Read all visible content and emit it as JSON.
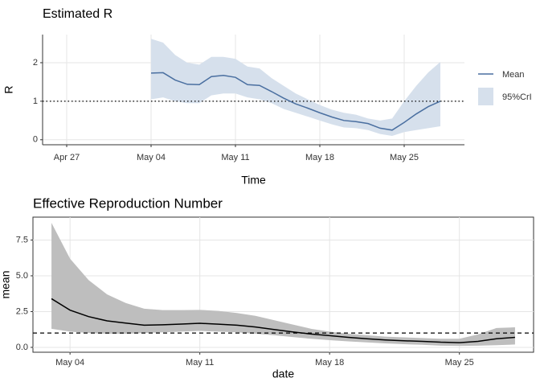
{
  "chart_data": [
    {
      "type": "line",
      "title": "Estimated R",
      "x_label": "Time",
      "y_label": "R",
      "x": [
        "May 04",
        "May 05",
        "May 06",
        "May 07",
        "May 08",
        "May 09",
        "May 10",
        "May 11",
        "May 12",
        "May 13",
        "May 14",
        "May 15",
        "May 16",
        "May 17",
        "May 18",
        "May 19",
        "May 20",
        "May 21",
        "May 22",
        "May 23",
        "May 24",
        "May 25",
        "May 26",
        "May 27",
        "May 28"
      ],
      "series": [
        {
          "name": "Mean",
          "color": "#4a6fa0",
          "values": [
            1.73,
            1.74,
            1.55,
            1.44,
            1.43,
            1.64,
            1.67,
            1.62,
            1.43,
            1.41,
            1.25,
            1.08,
            0.93,
            0.82,
            0.7,
            0.59,
            0.5,
            0.47,
            0.42,
            0.3,
            0.25,
            0.45,
            0.67,
            0.86,
            1.0
          ]
        }
      ],
      "band": {
        "name": "95%CrI",
        "color": "#d6e0ec",
        "upper": [
          2.62,
          2.52,
          2.2,
          2.0,
          1.95,
          2.15,
          2.15,
          2.1,
          1.9,
          1.85,
          1.6,
          1.4,
          1.2,
          1.05,
          0.9,
          0.78,
          0.7,
          0.65,
          0.55,
          0.5,
          0.55,
          1.0,
          1.4,
          1.75,
          2.02
        ],
        "lower": [
          1.05,
          1.1,
          1.0,
          0.95,
          0.95,
          1.15,
          1.2,
          1.2,
          1.1,
          1.05,
          0.95,
          0.8,
          0.7,
          0.6,
          0.5,
          0.4,
          0.32,
          0.3,
          0.25,
          0.15,
          0.1,
          0.2,
          0.25,
          0.3,
          0.35
        ]
      },
      "hline": 1,
      "hline_style": "dotted",
      "xlim": [
        "Apr 25",
        "May 30"
      ],
      "xticks": [
        "Apr 27",
        "May 04",
        "May 11",
        "May 18",
        "May 25"
      ],
      "ylim": [
        -0.13,
        2.73
      ],
      "yticks": [
        0,
        1,
        2
      ],
      "grid": true,
      "legend": "right"
    },
    {
      "type": "line",
      "title": "Effective Reproduction Number",
      "x_label": "date",
      "y_label": "mean",
      "x": [
        "May 03",
        "May 04",
        "May 05",
        "May 06",
        "May 07",
        "May 08",
        "May 09",
        "May 10",
        "May 11",
        "May 12",
        "May 13",
        "May 14",
        "May 15",
        "May 16",
        "May 17",
        "May 18",
        "May 19",
        "May 20",
        "May 21",
        "May 22",
        "May 23",
        "May 24",
        "May 25",
        "May 26",
        "May 27",
        "May 28"
      ],
      "values": [
        3.4,
        2.6,
        2.15,
        1.85,
        1.7,
        1.55,
        1.58,
        1.63,
        1.68,
        1.62,
        1.55,
        1.42,
        1.25,
        1.08,
        0.93,
        0.82,
        0.7,
        0.6,
        0.52,
        0.46,
        0.42,
        0.36,
        0.33,
        0.42,
        0.6,
        0.7
      ],
      "color": "#000000",
      "band": {
        "color": "#bebebe",
        "upper": [
          8.7,
          6.2,
          4.7,
          3.7,
          3.1,
          2.7,
          2.6,
          2.6,
          2.62,
          2.55,
          2.4,
          2.2,
          1.9,
          1.6,
          1.3,
          1.1,
          0.95,
          0.85,
          0.75,
          0.7,
          0.65,
          0.6,
          0.6,
          0.9,
          1.35,
          1.4
        ],
        "lower": [
          1.3,
          1.1,
          1.0,
          0.95,
          0.95,
          1.0,
          1.05,
          1.1,
          1.15,
          1.1,
          1.05,
          0.95,
          0.85,
          0.72,
          0.6,
          0.5,
          0.42,
          0.35,
          0.28,
          0.22,
          0.18,
          0.12,
          0.1,
          0.12,
          0.15,
          0.2
        ]
      },
      "hline": 1,
      "hline_style": "dashed",
      "xlim": [
        "May 02",
        "May 29"
      ],
      "xticks": [
        "May 04",
        "May 11",
        "May 18",
        "May 25"
      ],
      "ylim": [
        -0.34,
        9.1
      ],
      "yticks": [
        {
          "value": 0,
          "label": "0.0"
        },
        {
          "value": 2.5,
          "label": "2.5"
        },
        {
          "value": 5,
          "label": "5.0"
        },
        {
          "value": 7.5,
          "label": "7.5"
        }
      ],
      "grid": true,
      "border": true
    }
  ]
}
